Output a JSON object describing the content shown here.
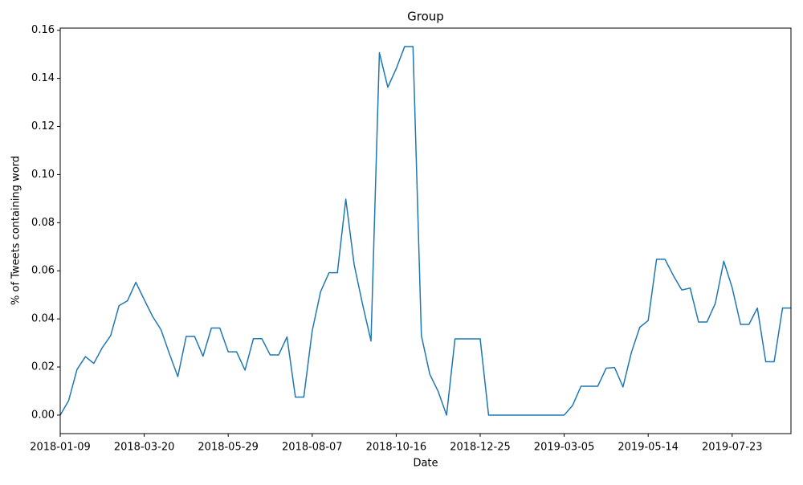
{
  "chart_data": {
    "type": "line",
    "title": "Group",
    "xlabel": "Date",
    "ylabel": "% of Tweets containing word",
    "color": "#1f77b4",
    "grid": false,
    "x": [
      "2018-01-09",
      "2018-01-16",
      "2018-01-23",
      "2018-01-30",
      "2018-02-06",
      "2018-02-13",
      "2018-02-20",
      "2018-02-27",
      "2018-03-06",
      "2018-03-13",
      "2018-03-20",
      "2018-03-27",
      "2018-04-03",
      "2018-04-10",
      "2018-04-17",
      "2018-04-24",
      "2018-05-01",
      "2018-05-08",
      "2018-05-15",
      "2018-05-22",
      "2018-05-29",
      "2018-06-05",
      "2018-06-12",
      "2018-06-19",
      "2018-06-26",
      "2018-07-03",
      "2018-07-10",
      "2018-07-17",
      "2018-07-24",
      "2018-07-31",
      "2018-08-07",
      "2018-08-14",
      "2018-08-21",
      "2018-08-28",
      "2018-09-04",
      "2018-09-11",
      "2018-09-18",
      "2018-09-25",
      "2018-10-02",
      "2018-10-09",
      "2018-10-16",
      "2018-10-23",
      "2018-10-30",
      "2018-11-06",
      "2018-11-13",
      "2018-11-20",
      "2018-11-27",
      "2018-12-04",
      "2018-12-11",
      "2018-12-18",
      "2018-12-25",
      "2019-01-01",
      "2019-01-08",
      "2019-01-15",
      "2019-01-22",
      "2019-01-29",
      "2019-02-05",
      "2019-02-12",
      "2019-02-19",
      "2019-02-26",
      "2019-03-05",
      "2019-03-12",
      "2019-03-19",
      "2019-03-26",
      "2019-04-02",
      "2019-04-09",
      "2019-04-16",
      "2019-04-23",
      "2019-04-30",
      "2019-05-07",
      "2019-05-14",
      "2019-05-21",
      "2019-05-28",
      "2019-06-04",
      "2019-06-11",
      "2019-06-18",
      "2019-06-25",
      "2019-07-02",
      "2019-07-09",
      "2019-07-16",
      "2019-07-23",
      "2019-07-30",
      "2019-08-06",
      "2019-08-13",
      "2019-08-20",
      "2019-08-27",
      "2019-09-03",
      "2019-09-10"
    ],
    "values": [
      0.0,
      0.006,
      0.019,
      0.0243,
      0.0215,
      0.028,
      0.033,
      0.0455,
      0.0475,
      0.0552,
      0.048,
      0.041,
      0.0355,
      0.0255,
      0.016,
      0.0327,
      0.0327,
      0.0245,
      0.0362,
      0.0362,
      0.0263,
      0.0263,
      0.0187,
      0.0318,
      0.0318,
      0.025,
      0.025,
      0.0325,
      0.0075,
      0.0075,
      0.035,
      0.0513,
      0.0592,
      0.0592,
      0.0898,
      0.0625,
      0.046,
      0.0308,
      0.1507,
      0.1363,
      0.144,
      0.1532,
      0.1532,
      0.033,
      0.017,
      0.0098,
      0.0,
      0.0317,
      0.0317,
      0.0317,
      0.0317,
      0.0,
      0.0,
      0.0,
      0.0,
      0.0,
      0.0,
      0.0,
      0.0,
      0.0,
      0.0,
      0.004,
      0.012,
      0.012,
      0.012,
      0.0195,
      0.0198,
      0.0117,
      0.026,
      0.0365,
      0.0393,
      0.0648,
      0.0648,
      0.058,
      0.052,
      0.0528,
      0.0387,
      0.0387,
      0.0465,
      0.064,
      0.053,
      0.0377,
      0.0377,
      0.0445,
      0.0222,
      0.0222,
      0.0445,
      0.0445
    ],
    "xlim": [
      "2018-01-09",
      "2019-09-10"
    ],
    "xticks": [
      "2018-01-09",
      "2018-03-20",
      "2018-05-29",
      "2018-08-07",
      "2018-10-16",
      "2018-12-25",
      "2019-03-05",
      "2019-05-14",
      "2019-07-23"
    ],
    "ylim": [
      -0.0077,
      0.1609
    ],
    "yticks": [
      {
        "value": 0,
        "label": "0.00"
      },
      {
        "value": 0.02,
        "label": "0.02"
      },
      {
        "value": 0.04,
        "label": "0.04"
      },
      {
        "value": 0.06,
        "label": "0.06"
      },
      {
        "value": 0.08,
        "label": "0.08"
      },
      {
        "value": 0.1,
        "label": "0.10"
      },
      {
        "value": 0.12,
        "label": "0.12"
      },
      {
        "value": 0.14,
        "label": "0.14"
      },
      {
        "value": 0.16,
        "label": "0.16"
      }
    ]
  }
}
